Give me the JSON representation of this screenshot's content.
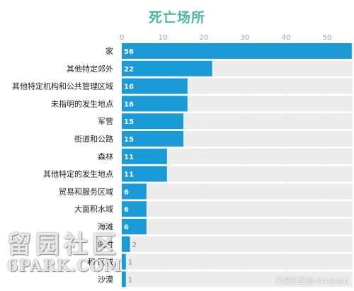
{
  "chart_data": {
    "type": "bar",
    "orientation": "horizontal",
    "title": "死亡场所",
    "categories": [
      "家",
      "其他特定郊外",
      "其他特定机构和公共管理区域",
      "未指明的发生地点",
      "军营",
      "街道和公路",
      "森林",
      "其他特定的发生地点",
      "贸易和服务区域",
      "大面积水域",
      "海滩",
      "临时",
      "和 区域",
      "沙漠"
    ],
    "values": [
      56,
      22,
      16,
      16,
      15,
      15,
      11,
      11,
      6,
      6,
      6,
      2,
      1,
      1
    ],
    "value_labels": [
      "56",
      "22",
      "16",
      "16",
      "15",
      "15",
      "11",
      "11",
      "6",
      "6",
      "6",
      "2",
      "1",
      "1"
    ],
    "xticks": [
      "0",
      "10",
      "20",
      "30",
      "40",
      "50"
    ],
    "xlim": [
      0,
      56
    ],
    "grid": true,
    "bar_color": "#1a9ad6",
    "track_color": "#ececec"
  },
  "watermark": {
    "chinese": "留园社区",
    "english": "6PARK.COM"
  },
  "credit": "风瀛社区@ultracold"
}
